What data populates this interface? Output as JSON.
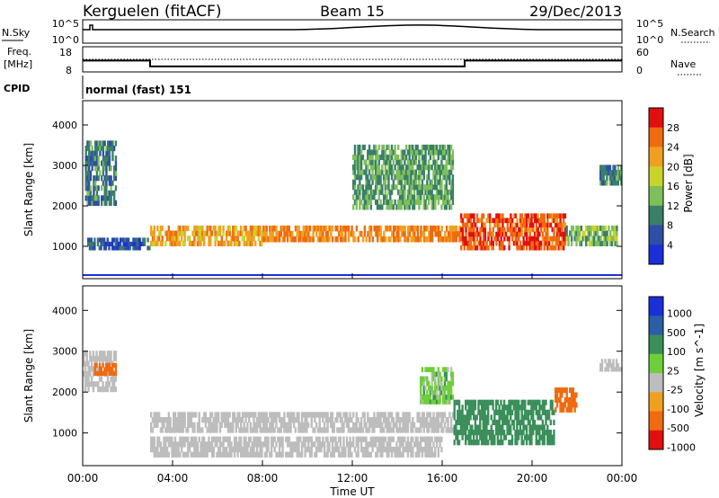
{
  "header": {
    "station": "Kerguelen (fitACF)",
    "beam": "Beam 15",
    "date": "29/Dec/2013"
  },
  "nsky_panel": {
    "label": "N.Sky",
    "left_ticks": [
      "10^5",
      "10^0"
    ],
    "right_ticks": [
      "10^5",
      "10^0"
    ],
    "right_label": "N.Search"
  },
  "freq_panel": {
    "label_line1": "Freq.",
    "label_line2": "[MHz]",
    "left_ticks": [
      "18",
      "8"
    ],
    "right_ticks": [
      "60",
      "0"
    ],
    "right_label": "Nave",
    "freq_mhz_segments": [
      {
        "start_hour": 0,
        "end_hour": 3,
        "value": 12.5
      },
      {
        "start_hour": 3,
        "end_hour": 17,
        "value": 10.2
      },
      {
        "start_hour": 17,
        "end_hour": 24,
        "value": 12.5
      }
    ]
  },
  "cpid": {
    "label": "CPID",
    "text": "normal (fast) 151"
  },
  "time_axis": {
    "label": "Time UT",
    "ticks": [
      "00:00",
      "04:00",
      "08:00",
      "12:00",
      "16:00",
      "20:00",
      "00:00"
    ]
  },
  "colors": {
    "power": [
      "#1a2fd8",
      "#2f4fa6",
      "#3a7f6a",
      "#7fbf5a",
      "#c9d42a",
      "#f0a020",
      "#f06a10",
      "#e01010"
    ],
    "velocity": [
      "#e01010",
      "#f06a10",
      "#f0a020",
      "#bdbdbd",
      "#6fcf3a",
      "#3a8f5a",
      "#2a5fa6",
      "#1a2fd8"
    ],
    "ground_scatter": "#bdbdbd"
  },
  "chart_data": [
    {
      "type": "heatmap",
      "name": "Power",
      "ylabel": "Slant Range [km]",
      "xlabel": "Time UT",
      "xlim_hours": [
        0,
        24
      ],
      "ylim": [
        200,
        4600
      ],
      "yticks": [
        "4000",
        "3000",
        "2000",
        "1000"
      ],
      "colorbar": {
        "label": "Power [dB]",
        "ticks": [
          "28",
          "24",
          "20",
          "16",
          "12",
          "8",
          "4"
        ],
        "range": [
          0,
          32
        ]
      },
      "echo_regions": [
        {
          "t0": 0.1,
          "t1": 1.5,
          "r0": 2000,
          "r1": 3600,
          "value": 9
        },
        {
          "t0": 0.2,
          "t1": 3.0,
          "r0": 900,
          "r1": 1200,
          "value": 6
        },
        {
          "t0": 3.0,
          "t1": 8.0,
          "r0": 1000,
          "r1": 1500,
          "value": 22
        },
        {
          "t0": 8.0,
          "t1": 16.8,
          "r0": 1100,
          "r1": 1500,
          "value": 24
        },
        {
          "t0": 16.8,
          "t1": 21.5,
          "r0": 900,
          "r1": 1800,
          "value": 27
        },
        {
          "t0": 12.0,
          "t1": 16.5,
          "r0": 1900,
          "r1": 3500,
          "value": 12
        },
        {
          "t0": 21.5,
          "t1": 23.8,
          "r0": 1000,
          "r1": 1500,
          "value": 14
        },
        {
          "t0": 23.0,
          "t1": 24.0,
          "r0": 2500,
          "r1": 3000,
          "value": 10
        }
      ]
    },
    {
      "type": "heatmap",
      "name": "Velocity",
      "ylabel": "Slant Range [km]",
      "xlabel": "Time UT",
      "xlim_hours": [
        0,
        24
      ],
      "ylim": [
        200,
        4600
      ],
      "yticks": [
        "4000",
        "3000",
        "2000",
        "1000"
      ],
      "colorbar": {
        "label": "Velocity [m s^-1]",
        "ticks": [
          "1000",
          "500",
          "100",
          "25",
          "-25",
          "-100",
          "-500",
          "-1000"
        ]
      },
      "echo_regions": [
        {
          "t0": 0.0,
          "t1": 1.5,
          "r0": 2000,
          "r1": 3000,
          "value": 0,
          "ground_scatter": true
        },
        {
          "t0": 0.5,
          "t1": 1.5,
          "r0": 2400,
          "r1": 2700,
          "value": -300
        },
        {
          "t0": 3.0,
          "t1": 16.5,
          "r0": 1000,
          "r1": 1500,
          "value": 0,
          "ground_scatter": true
        },
        {
          "t0": 3.0,
          "t1": 16.0,
          "r0": 400,
          "r1": 900,
          "value": 0,
          "ground_scatter": true
        },
        {
          "t0": 16.5,
          "t1": 21.0,
          "r0": 700,
          "r1": 1800,
          "value": 250
        },
        {
          "t0": 15.0,
          "t1": 16.5,
          "r0": 1700,
          "r1": 2600,
          "value": 60
        },
        {
          "t0": 21.0,
          "t1": 22.0,
          "r0": 1500,
          "r1": 2100,
          "value": -200
        },
        {
          "t0": 23.0,
          "t1": 24.0,
          "r0": 2500,
          "r1": 2800,
          "value": 0,
          "ground_scatter": true
        }
      ]
    }
  ]
}
